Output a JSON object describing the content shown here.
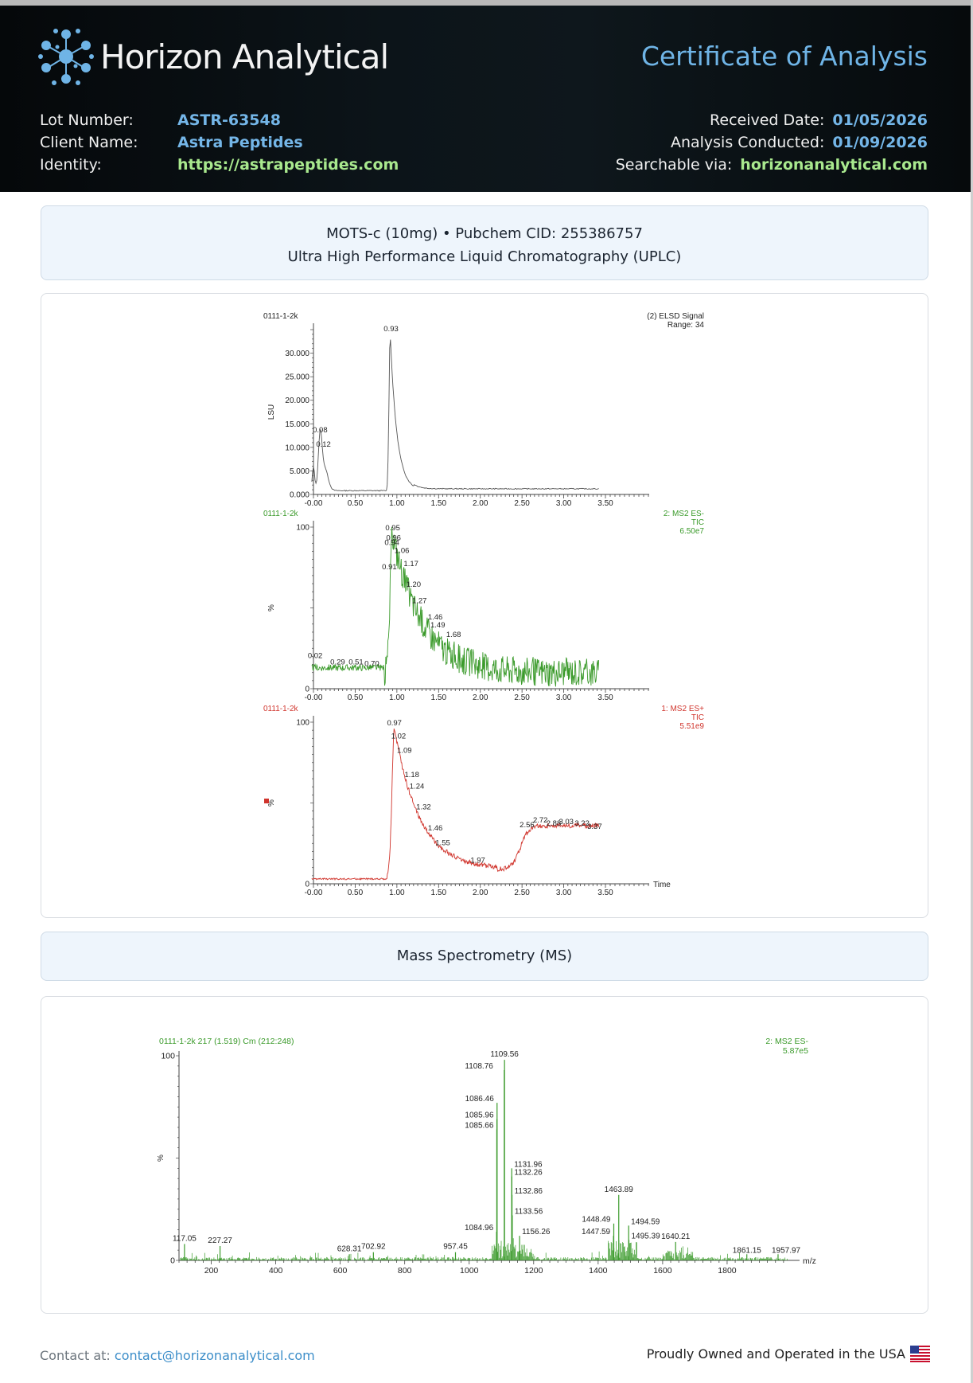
{
  "header": {
    "brand": "Horizon Analytical",
    "title": "Certificate of Analysis",
    "lot_label": "Lot Number:",
    "lot_value": "ASTR-63548",
    "client_label": "Client Name:",
    "client_value": "Astra Peptides",
    "identity_label": "Identity:",
    "identity_value": "https://astrapeptides.com",
    "received_label": "Received Date:",
    "received_value": "01/05/2026",
    "analysis_label": "Analysis Conducted:",
    "analysis_value": "01/09/2026",
    "searchable_label": "Searchable via:",
    "searchable_value": "horizonanalytical.com"
  },
  "uplc_panel": {
    "line1": "MOTS-c (10mg) • Pubchem CID: 255386757",
    "line2": "Ultra High Performance Liquid Chromatography (UPLC)"
  },
  "ms_panel": {
    "title": "Mass Spectrometry (MS)"
  },
  "footer": {
    "contact_label": "Contact at:",
    "contact_email": "contact@horizonanalytical.com",
    "tagline": "Proudly Owned and Operated in the USA"
  },
  "colors": {
    "elsd": "#555555",
    "ms_neg": "#3a9a2a",
    "ms_pos": "#d0342c",
    "accent": "#6fb4e6",
    "green_value": "#a9e98e"
  },
  "chart_data": [
    {
      "type": "line",
      "id": "elsd",
      "sample": "0111-1-2k",
      "legend": [
        "(2) ELSD Signal",
        "Range: 34"
      ],
      "ylabel": "LSU",
      "xlim": [
        0,
        3.5
      ],
      "ylim": [
        0,
        35000
      ],
      "xticks": [
        "-0.00",
        "0.50",
        "1.00",
        "1.50",
        "2.00",
        "2.50",
        "3.00",
        "3.50"
      ],
      "yticks": [
        "0.000",
        "5.000",
        "10.000",
        "15.000",
        "20.000",
        "25.000",
        "30.000"
      ],
      "peaks": [
        {
          "x": 0.08,
          "y": 12500,
          "label": "0.08"
        },
        {
          "x": 0.12,
          "y": 9500,
          "label": "0.12"
        },
        {
          "x": 0.93,
          "y": 34000,
          "label": "0.93"
        }
      ]
    },
    {
      "type": "line",
      "id": "ms-neg",
      "sample": "0111-1-2k",
      "legend": [
        "2: MS2 ES-",
        "TIC",
        "6.50e7"
      ],
      "ylabel": "%",
      "xlim": [
        0,
        3.5
      ],
      "ylim": [
        0,
        100
      ],
      "xticks": [
        "-0.00",
        "0.50",
        "1.00",
        "1.50",
        "2.00",
        "2.50",
        "3.00",
        "3.50"
      ],
      "yticks": [
        "0",
        "100"
      ],
      "peaks": [
        {
          "x": 0.02,
          "y": 17,
          "label": "0.02"
        },
        {
          "x": 0.29,
          "y": 13,
          "label": "0.29"
        },
        {
          "x": 0.51,
          "y": 13,
          "label": "0.51"
        },
        {
          "x": 0.7,
          "y": 12,
          "label": "0.70"
        },
        {
          "x": 0.91,
          "y": 72,
          "label": "0.91"
        },
        {
          "x": 0.94,
          "y": 87,
          "label": "0.94"
        },
        {
          "x": 0.95,
          "y": 96,
          "label": "0.95"
        },
        {
          "x": 0.96,
          "y": 90,
          "label": "0.96"
        },
        {
          "x": 1.06,
          "y": 82,
          "label": "1.06"
        },
        {
          "x": 1.17,
          "y": 74,
          "label": "1.17"
        },
        {
          "x": 1.2,
          "y": 61,
          "label": "1.20"
        },
        {
          "x": 1.27,
          "y": 51,
          "label": "1.27"
        },
        {
          "x": 1.46,
          "y": 41,
          "label": "1.46"
        },
        {
          "x": 1.49,
          "y": 36,
          "label": "1.49"
        },
        {
          "x": 1.68,
          "y": 30,
          "label": "1.68"
        }
      ]
    },
    {
      "type": "line",
      "id": "ms-pos",
      "sample": "0111-1-2k",
      "legend": [
        "1: MS2 ES+",
        "TIC",
        "5.51e9"
      ],
      "ylabel": "%",
      "xlabel": "Time",
      "xlim": [
        0,
        3.5
      ],
      "ylim": [
        0,
        100
      ],
      "xticks": [
        "-0.00",
        "0.50",
        "1.00",
        "1.50",
        "2.00",
        "2.50",
        "3.00",
        "3.50"
      ],
      "yticks": [
        "0",
        "100"
      ],
      "peaks": [
        {
          "x": 0.97,
          "y": 96,
          "label": "0.97"
        },
        {
          "x": 1.02,
          "y": 88,
          "label": "1.02"
        },
        {
          "x": 1.09,
          "y": 79,
          "label": "1.09"
        },
        {
          "x": 1.18,
          "y": 64,
          "label": "1.18"
        },
        {
          "x": 1.24,
          "y": 57,
          "label": "1.24"
        },
        {
          "x": 1.32,
          "y": 44,
          "label": "1.32"
        },
        {
          "x": 1.46,
          "y": 31,
          "label": "1.46"
        },
        {
          "x": 1.55,
          "y": 22,
          "label": "1.55"
        },
        {
          "x": 1.97,
          "y": 11,
          "label": "1.97"
        },
        {
          "x": 2.56,
          "y": 33,
          "label": "2.56"
        },
        {
          "x": 2.72,
          "y": 36,
          "label": "2.72"
        },
        {
          "x": 2.88,
          "y": 34,
          "label": "2.88"
        },
        {
          "x": 3.03,
          "y": 35,
          "label": "3.03"
        },
        {
          "x": 3.22,
          "y": 34,
          "label": "3.22"
        },
        {
          "x": 3.37,
          "y": 32,
          "label": "3.37"
        }
      ]
    },
    {
      "type": "bar",
      "id": "mass-spec",
      "sample": "0111-1-2k 217 (1.519) Cm (212:248)",
      "legend": [
        "2: MS2 ES-",
        "5.87e5"
      ],
      "ylabel": "%",
      "xlabel": "m/z",
      "xlim": [
        100,
        2000
      ],
      "ylim": [
        0,
        100
      ],
      "xticks": [
        "200",
        "400",
        "600",
        "800",
        "1000",
        "1200",
        "1400",
        "1600",
        "1800"
      ],
      "yticks": [
        "0",
        "100"
      ],
      "peaks": [
        {
          "x": 117.05,
          "y": 8,
          "label": "117.05"
        },
        {
          "x": 227.27,
          "y": 7,
          "label": "227.27"
        },
        {
          "x": 628.31,
          "y": 3,
          "label": "628.31"
        },
        {
          "x": 702.92,
          "y": 4,
          "label": "702.92"
        },
        {
          "x": 957.45,
          "y": 4,
          "label": "957.45"
        },
        {
          "x": 1084.96,
          "y": 14,
          "label": "1084.96"
        },
        {
          "x": 1085.66,
          "y": 64,
          "label": "1085.66"
        },
        {
          "x": 1085.96,
          "y": 69,
          "label": "1085.96"
        },
        {
          "x": 1086.46,
          "y": 77,
          "label": "1086.46"
        },
        {
          "x": 1108.76,
          "y": 93,
          "label": "1108.76"
        },
        {
          "x": 1109.56,
          "y": 98,
          "label": "1109.56"
        },
        {
          "x": 1131.96,
          "y": 45,
          "label": "1131.96"
        },
        {
          "x": 1132.26,
          "y": 41,
          "label": "1132.26"
        },
        {
          "x": 1132.86,
          "y": 32,
          "label": "1132.86"
        },
        {
          "x": 1133.56,
          "y": 22,
          "label": "1133.56"
        },
        {
          "x": 1156.26,
          "y": 12,
          "label": "1156.26"
        },
        {
          "x": 1447.59,
          "y": 12,
          "label": "1447.59"
        },
        {
          "x": 1448.49,
          "y": 18,
          "label": "1448.49"
        },
        {
          "x": 1463.89,
          "y": 32,
          "label": "1463.89"
        },
        {
          "x": 1494.59,
          "y": 17,
          "label": "1494.59"
        },
        {
          "x": 1495.39,
          "y": 10,
          "label": "1495.39"
        },
        {
          "x": 1640.21,
          "y": 9,
          "label": "1640.21"
        },
        {
          "x": 1861.15,
          "y": 3,
          "label": "1861.15"
        },
        {
          "x": 1957.97,
          "y": 3,
          "label": "1957.97"
        }
      ]
    }
  ]
}
